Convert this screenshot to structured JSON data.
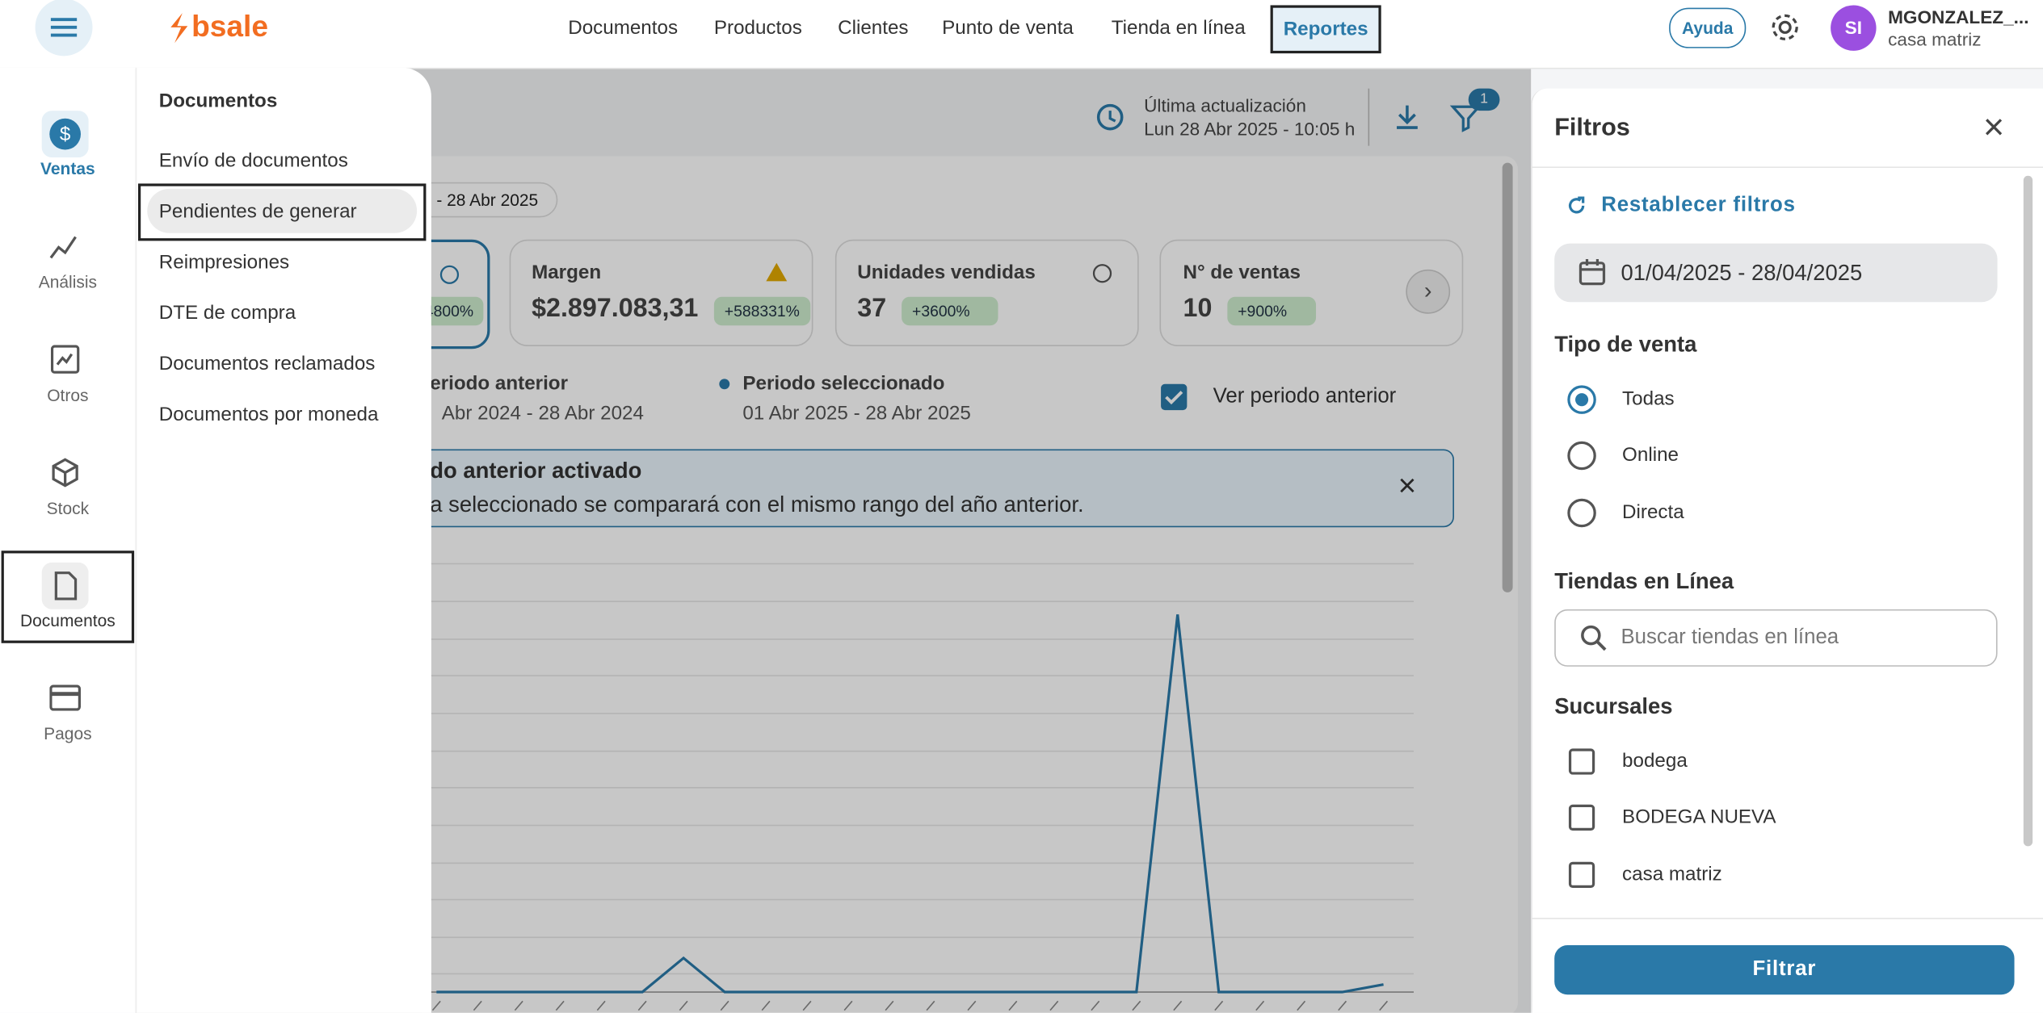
{
  "header": {
    "logo": "bsale",
    "nav": [
      "Documentos",
      "Productos",
      "Clientes",
      "Punto de venta",
      "Tienda en línea",
      "Reportes"
    ],
    "help": "Ayuda",
    "avatar": "SI",
    "user_name": "MGONZALEZ_...",
    "user_store": "casa matriz"
  },
  "sidebar": {
    "items": [
      "Ventas",
      "Análisis",
      "Otros",
      "Stock",
      "Documentos",
      "Pagos"
    ]
  },
  "dropdown": {
    "title": "Documentos",
    "items": [
      "Envío de documentos",
      "Pendientes de generar",
      "Reimpresiones",
      "DTE de compra",
      "Documentos reclamados",
      "Documentos por moneda"
    ]
  },
  "toolbar": {
    "last_update_label": "Última actualización",
    "last_update_value": "Lun 28 Abr 2025 - 10:05 h",
    "filter_badge": "1"
  },
  "content": {
    "date_chip": "- 28 Abr 2025",
    "cards": [
      {
        "change": "4800%"
      },
      {
        "title": "Margen",
        "value": "$2.897.083,31",
        "change": "+588331%"
      },
      {
        "title": "Unidades vendidas",
        "value": "37",
        "change": "+3600%"
      },
      {
        "title": "N° de ventas",
        "value": "10",
        "change": "+900%"
      }
    ],
    "legend": {
      "previous_label": "eriodo anterior",
      "previous_range": "Abr 2024 - 28 Abr 2024",
      "selected_label": "Periodo seleccionado",
      "selected_range": "01 Abr 2025 - 28 Abr 2025",
      "toggle": "Ver periodo anterior"
    },
    "banner": {
      "title": "do anterior activado",
      "text": "a seleccionado se comparará con el mismo rango del año anterior."
    },
    "chart": {
      "type": "line",
      "color": "#2a79a8",
      "ylim": [
        0,
        100
      ],
      "values": [
        0,
        0,
        0,
        0,
        0,
        0,
        9,
        0,
        0,
        0,
        0,
        0,
        0,
        0,
        0,
        0,
        0,
        0,
        100,
        0,
        0,
        0,
        0,
        2
      ]
    }
  },
  "filters": {
    "title": "Filtros",
    "reset": "Restablecer filtros",
    "date_range": "01/04/2025 - 28/04/2025",
    "sale_type_title": "Tipo de venta",
    "sale_types": [
      "Todas",
      "Online",
      "Directa"
    ],
    "online_stores_title": "Tiendas en Línea",
    "search_placeholder": "Buscar tiendas en línea",
    "branches_title": "Sucursales",
    "branches": [
      "bodega",
      "BODEGA NUEVA",
      "casa matriz"
    ],
    "submit": "Filtrar"
  }
}
